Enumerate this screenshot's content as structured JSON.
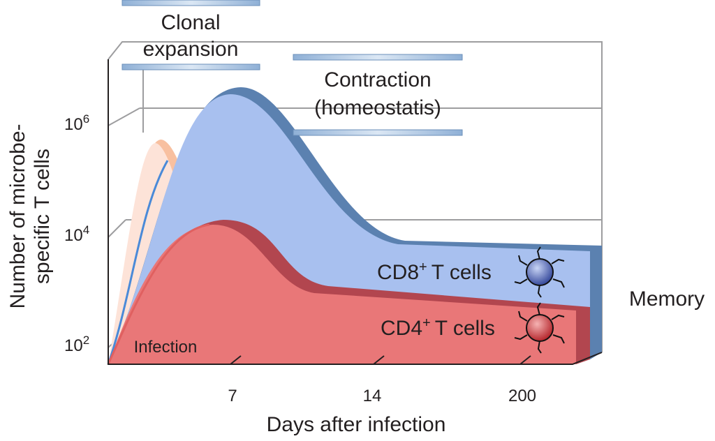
{
  "y_axis": {
    "label_lines": [
      "Number of microbe-",
      "specific T cells"
    ],
    "ticks": [
      {
        "base": "10",
        "exponent": "2"
      },
      {
        "base": "10",
        "exponent": "4"
      },
      {
        "base": "10",
        "exponent": "6"
      }
    ]
  },
  "x_axis": {
    "label": "Days after infection",
    "ticks": [
      "7",
      "14",
      "200"
    ]
  },
  "phases": {
    "expansion": [
      "Clonal",
      "expansion"
    ],
    "contraction": [
      "Contraction",
      "(homeostatis)"
    ]
  },
  "populations": [
    {
      "name": "CD8",
      "sup": "+",
      "suffix": "T cells"
    },
    {
      "name": "CD4",
      "sup": "+",
      "suffix": "T cells"
    }
  ],
  "infection": "Infection",
  "memory": "Memory"
}
